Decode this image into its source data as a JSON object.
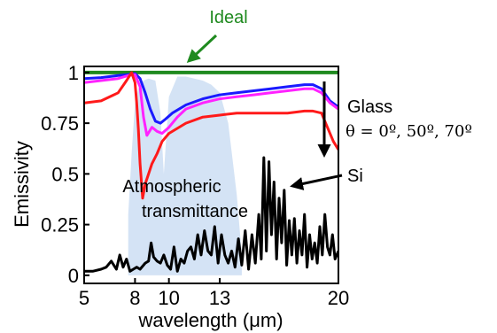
{
  "chart_data": {
    "type": "line",
    "title": "",
    "xlabel": "wavelength (μm)",
    "ylabel": "Emissivity",
    "xlim": [
      5,
      20
    ],
    "ylim": [
      0,
      1
    ],
    "x_scale": "linear",
    "grid": false,
    "xticks": [
      5,
      8,
      10,
      13,
      20
    ],
    "xtick_labels": [
      "5",
      "8",
      "10",
      "13",
      "20"
    ],
    "yticks": [
      0,
      0.25,
      0.5,
      0.75,
      1
    ],
    "ytick_labels": [
      "0",
      "0.25",
      "0.5",
      "0.75",
      "1"
    ],
    "colors": {
      "ideal": "#1f8a1f",
      "glass_0": "#1a1aff",
      "glass_50": "#ff22ff",
      "glass_70": "#ff1a1a",
      "si": "#000000",
      "atmosphere": "#c9dcf2"
    },
    "series": [
      {
        "key": "ideal",
        "x": [
          5,
          20
        ],
        "y": [
          1.0,
          1.0
        ]
      },
      {
        "key": "glass_0",
        "x": [
          5,
          6,
          7,
          7.6,
          8,
          8.3,
          8.6,
          8.9,
          9.2,
          9.5,
          9.8,
          10.2,
          11,
          12,
          13,
          14,
          15,
          16,
          17,
          18,
          18.5,
          19,
          19.5,
          20
        ],
        "y": [
          0.97,
          0.975,
          0.985,
          0.99,
          0.995,
          0.97,
          0.9,
          0.82,
          0.76,
          0.75,
          0.77,
          0.8,
          0.84,
          0.87,
          0.89,
          0.9,
          0.91,
          0.92,
          0.93,
          0.94,
          0.94,
          0.92,
          0.86,
          0.83
        ]
      },
      {
        "key": "glass_50",
        "x": [
          5,
          6,
          7,
          7.6,
          8,
          8.3,
          8.5,
          8.7,
          9,
          9.3,
          9.6,
          10,
          10.5,
          11,
          12,
          13,
          14,
          15,
          16,
          17,
          18,
          18.5,
          19,
          19.5,
          20
        ],
        "y": [
          0.95,
          0.96,
          0.97,
          0.985,
          0.99,
          0.93,
          0.78,
          0.69,
          0.73,
          0.71,
          0.7,
          0.73,
          0.78,
          0.82,
          0.85,
          0.87,
          0.88,
          0.89,
          0.9,
          0.91,
          0.92,
          0.92,
          0.9,
          0.85,
          0.82
        ]
      },
      {
        "key": "glass_70",
        "x": [
          5,
          6,
          7,
          7.5,
          7.8,
          8,
          8.1,
          8.2,
          8.3,
          8.45,
          8.6,
          8.8,
          9,
          9.3,
          9.6,
          10,
          11,
          12,
          13,
          14,
          15,
          16,
          17,
          18,
          18.5,
          19,
          19.3,
          19.7,
          20
        ],
        "y": [
          0.85,
          0.86,
          0.9,
          0.96,
          1.0,
          0.95,
          0.85,
          0.72,
          0.55,
          0.38,
          0.45,
          0.5,
          0.55,
          0.6,
          0.66,
          0.7,
          0.75,
          0.78,
          0.79,
          0.8,
          0.8,
          0.8,
          0.8,
          0.81,
          0.81,
          0.8,
          0.74,
          0.66,
          0.62
        ]
      },
      {
        "key": "si",
        "x": [
          5,
          5.5,
          6,
          6.3,
          6.6,
          6.9,
          7.1,
          7.3,
          7.5,
          7.7,
          7.9,
          8.1,
          8.3,
          8.6,
          8.8,
          8.95,
          9.1,
          9.3,
          9.5,
          9.7,
          9.9,
          10.1,
          10.3,
          10.5,
          10.7,
          10.9,
          11.1,
          11.3,
          11.5,
          11.7,
          11.9,
          12.1,
          12.3,
          12.5,
          12.7,
          12.9,
          13.1,
          13.3,
          13.5,
          13.7,
          13.9,
          14.1,
          14.3,
          14.5,
          14.7,
          14.9,
          15.1,
          15.3,
          15.45,
          15.6,
          15.75,
          15.9,
          16.05,
          16.2,
          16.35,
          16.5,
          16.65,
          16.8,
          16.95,
          17.1,
          17.25,
          17.4,
          17.55,
          17.7,
          17.85,
          18.0,
          18.15,
          18.3,
          18.45,
          18.6,
          18.75,
          18.9,
          19.05,
          19.2,
          19.35,
          19.5,
          19.65,
          19.8,
          20
        ],
        "y": [
          0.02,
          0.02,
          0.03,
          0.04,
          0.07,
          0.03,
          0.1,
          0.04,
          0.08,
          0.02,
          0.03,
          0.04,
          0.03,
          0.06,
          0.07,
          0.16,
          0.09,
          0.07,
          0.06,
          0.1,
          0.05,
          0.03,
          0.14,
          0.02,
          0.08,
          0.06,
          0.12,
          0.14,
          0.08,
          0.2,
          0.1,
          0.22,
          0.12,
          0.1,
          0.24,
          0.06,
          0.2,
          0.1,
          0.06,
          0.12,
          0.04,
          0.18,
          0.05,
          0.22,
          0.03,
          0.2,
          0.06,
          0.3,
          0.08,
          0.58,
          0.12,
          0.56,
          0.2,
          0.46,
          0.08,
          0.38,
          0.16,
          0.42,
          0.05,
          0.27,
          0.1,
          0.28,
          0.06,
          0.22,
          0.1,
          0.3,
          0.04,
          0.2,
          0.08,
          0.16,
          0.06,
          0.24,
          0.1,
          0.3,
          0.14,
          0.1,
          0.2,
          0.08,
          0.12
        ]
      }
    ],
    "atmosphere_band": {
      "x": [
        7.6,
        7.8,
        8.0,
        8.2,
        8.5,
        8.8,
        9.2,
        9.5,
        9.7,
        10.0,
        10.5,
        11.0,
        11.5,
        12.0,
        12.5,
        13.0,
        13.5,
        14.0,
        14.3
      ],
      "y": [
        0.3,
        0.6,
        0.85,
        0.92,
        0.96,
        0.97,
        0.96,
        0.8,
        0.5,
        0.88,
        0.98,
        0.98,
        0.97,
        0.96,
        0.94,
        0.9,
        0.75,
        0.4,
        0.1
      ]
    },
    "annotations": {
      "ideal": "Ideal",
      "glass": "Glass",
      "glass_angles": "θ = 0º, 50º, 70º",
      "si": "Si",
      "atmo_line1": "Atmospheric",
      "atmo_line2": "transmittance"
    }
  }
}
